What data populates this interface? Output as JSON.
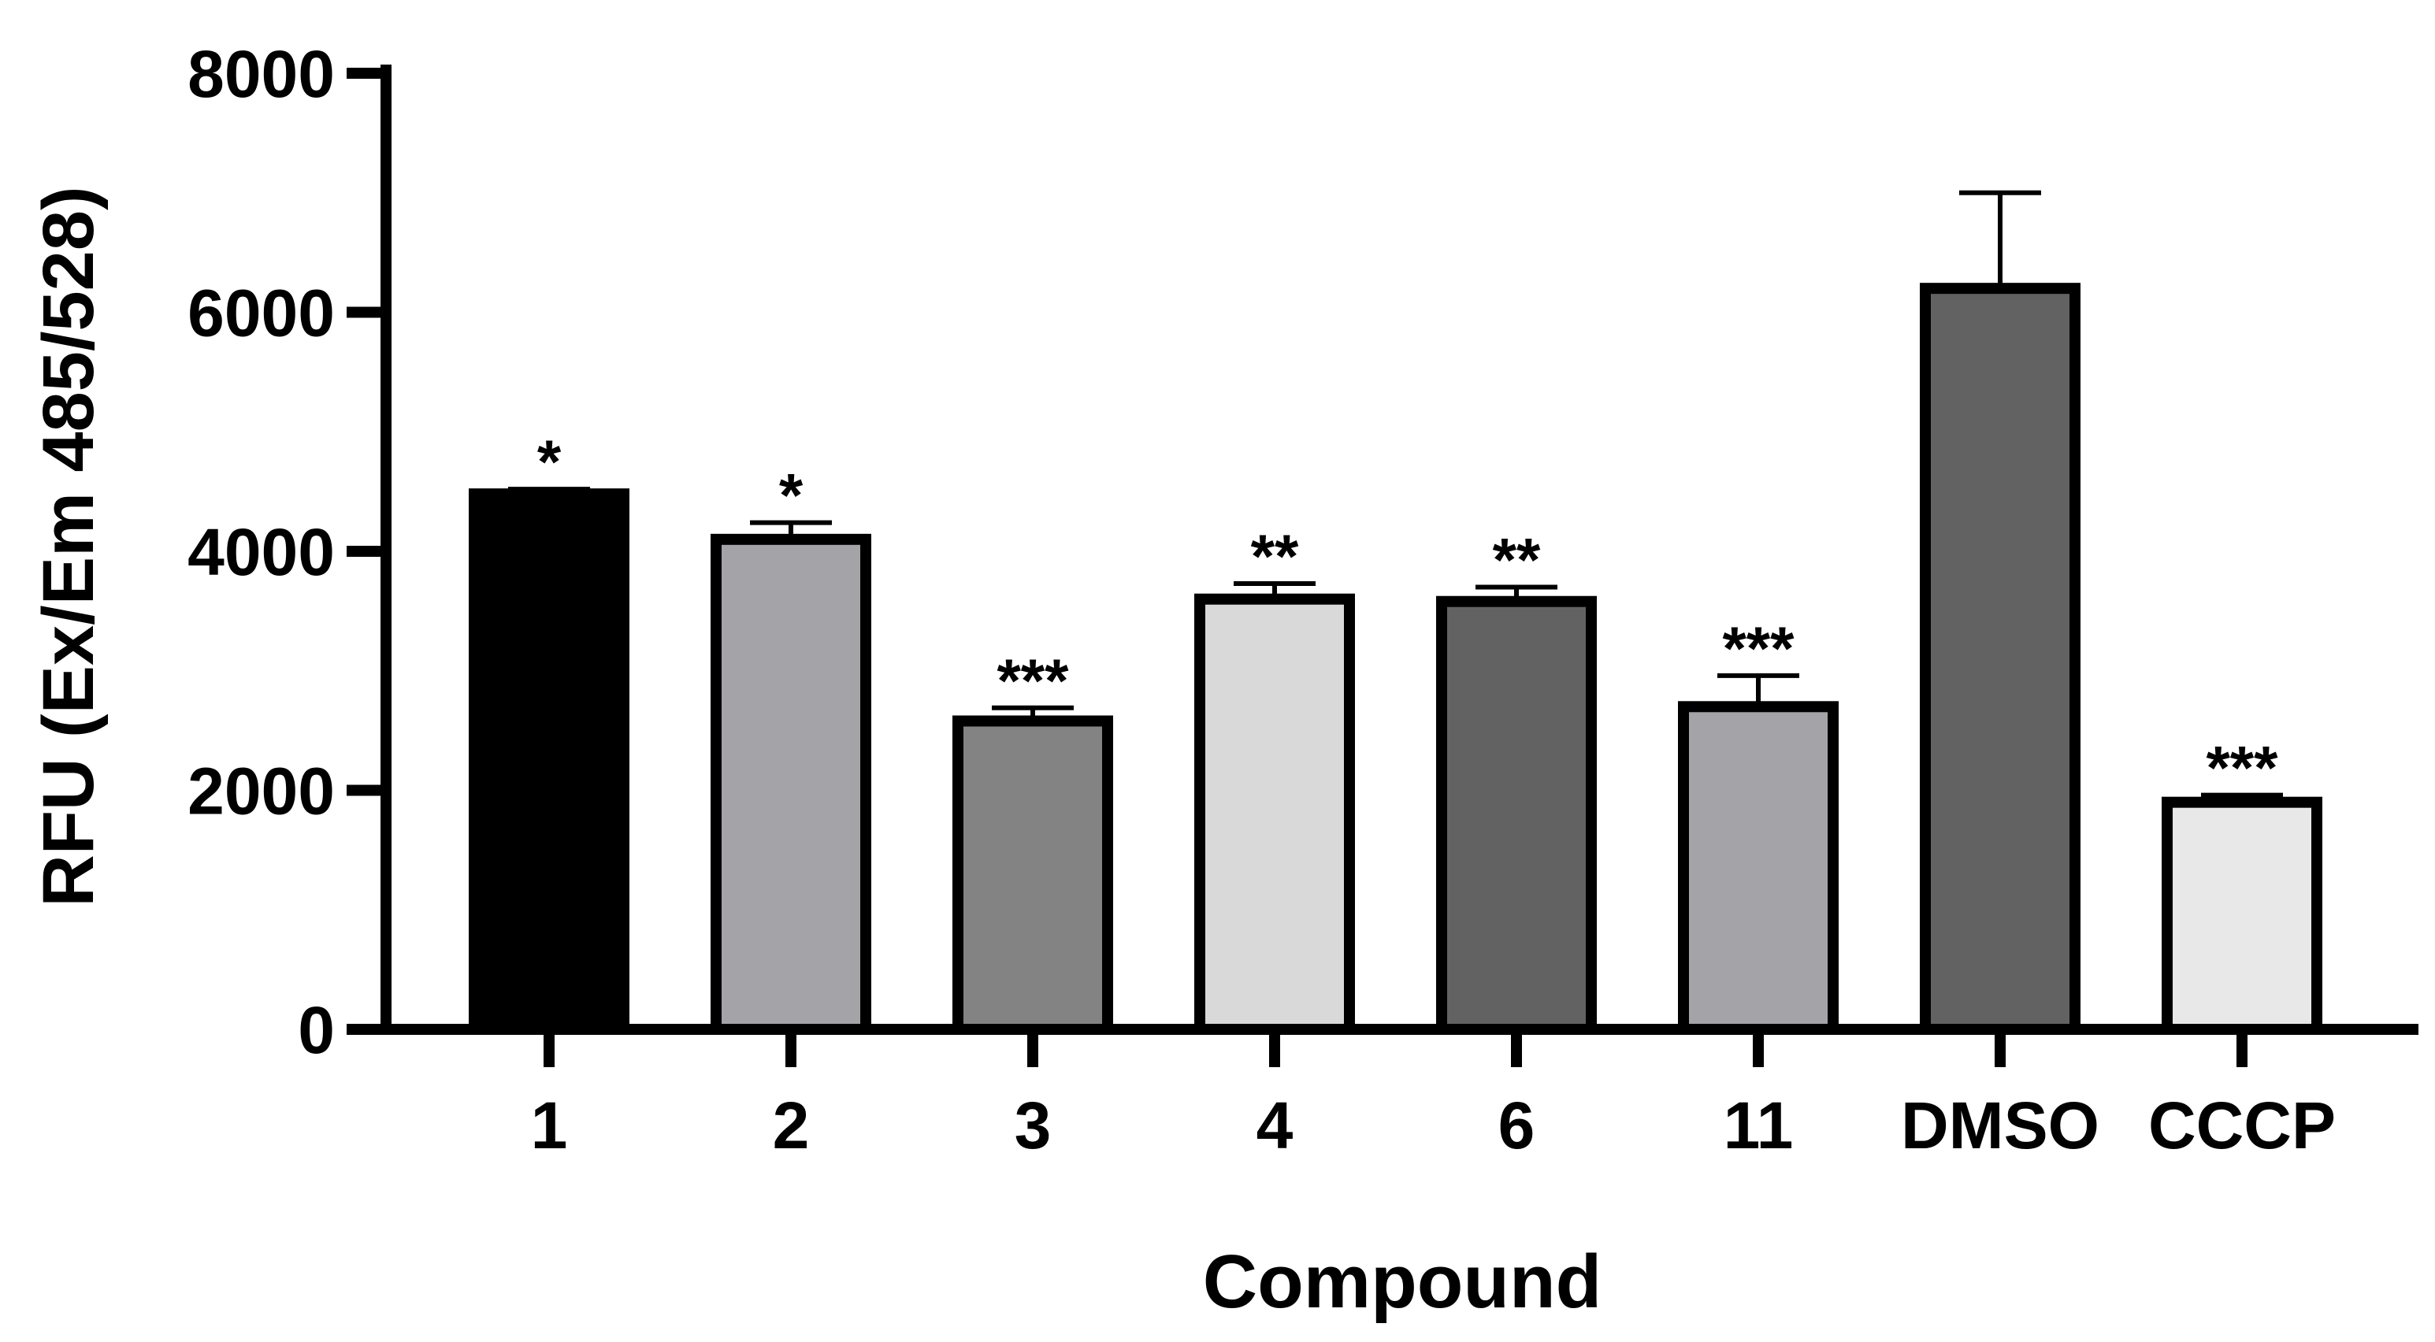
{
  "chart_data": {
    "type": "bar",
    "title": "",
    "xlabel": "Compound",
    "ylabel": "RFU (Ex/Em 485/528)",
    "ylim": [
      0,
      8000
    ],
    "yticks": [
      {
        "value": 0,
        "label": "0"
      },
      {
        "value": 2000,
        "label": "2000"
      },
      {
        "value": 4000,
        "label": "4000"
      },
      {
        "value": 6000,
        "label": "6000"
      },
      {
        "value": 8000,
        "label": "8000"
      }
    ],
    "grid": false,
    "legend": "none",
    "bars": [
      {
        "category": "1",
        "value": 4480,
        "error": 40,
        "significance": "*",
        "color": "#000000"
      },
      {
        "category": "2",
        "value": 4100,
        "error": 140,
        "significance": "*",
        "color": "#a4a4a8"
      },
      {
        "category": "3",
        "value": 2580,
        "error": 110,
        "significance": "***",
        "color": "#838383"
      },
      {
        "category": "4",
        "value": 3600,
        "error": 130,
        "significance": "**",
        "color": "#d9d9d9"
      },
      {
        "category": "6",
        "value": 3580,
        "error": 120,
        "significance": "**",
        "color": "#626262"
      },
      {
        "category": "11",
        "value": 2700,
        "error": 260,
        "significance": "***",
        "color": "#a4a4a8"
      },
      {
        "category": "DMSO",
        "value": 6200,
        "error": 800,
        "significance": "",
        "color": "#626262"
      },
      {
        "category": "CCCP",
        "value": 1900,
        "error": 60,
        "significance": "***",
        "color": "#e8e8e8"
      }
    ]
  }
}
